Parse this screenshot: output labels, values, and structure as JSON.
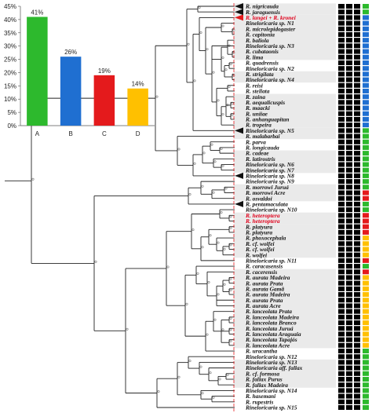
{
  "chart_data": {
    "type": "bar",
    "categories": [
      "A",
      "B",
      "C",
      "D"
    ],
    "values": [
      41,
      26,
      19,
      14
    ],
    "value_labels": [
      "41%",
      "26%",
      "19%",
      "14%"
    ],
    "colors": [
      "#2db92d",
      "#1f6fd1",
      "#e41a1c",
      "#ffc000"
    ],
    "ylim": [
      0,
      45
    ],
    "yticks": [
      "0%",
      "5%",
      "10%",
      "15%",
      "20%",
      "25%",
      "30%",
      "35%",
      "40%",
      "45%"
    ]
  },
  "tree": {
    "taxa": [
      {
        "label": "R. nigricauda",
        "red": false
      },
      {
        "label": "R. jaraguensis",
        "red": false
      },
      {
        "label": "R. langei + R. kronei",
        "red": true
      },
      {
        "label": "Rineloricaria sp. N1",
        "red": false
      },
      {
        "label": "R. microlepidogaster",
        "red": false
      },
      {
        "label": "R. capitonia",
        "red": false
      },
      {
        "label": "R. baliola",
        "red": false
      },
      {
        "label": "Rineloricaria sp. N3",
        "red": false
      },
      {
        "label": "R. cubataonis",
        "red": false
      },
      {
        "label": "R. lima",
        "red": false
      },
      {
        "label": "R. quadrensis",
        "red": false
      },
      {
        "label": "Rineloricaria sp. N2",
        "red": false
      },
      {
        "label": "R. strigilata",
        "red": false
      },
      {
        "label": "Rineloricaria sp. N4",
        "red": false
      },
      {
        "label": "R. reisi",
        "red": false
      },
      {
        "label": "R. stellata",
        "red": false
      },
      {
        "label": "R. zaina",
        "red": false
      },
      {
        "label": "R. aequalicuspis",
        "red": false
      },
      {
        "label": "R. maacki",
        "red": false
      },
      {
        "label": "R. uniiae",
        "red": false
      },
      {
        "label": "R. anhanguapitan",
        "red": false
      },
      {
        "label": "R. tropeira",
        "red": false
      },
      {
        "label": "Rineloricaria sp. N5",
        "red": false
      },
      {
        "label": "R. malabarbai",
        "red": false
      },
      {
        "label": "R. parva",
        "red": false
      },
      {
        "label": "R. longicauda",
        "red": false
      },
      {
        "label": "R. cadeae",
        "red": false
      },
      {
        "label": "R. latirostris",
        "red": false
      },
      {
        "label": "Rineloricaria sp. N6",
        "red": false
      },
      {
        "label": "Rineloricaria sp. N7",
        "red": false
      },
      {
        "label": "Rineloricaria sp. N8",
        "red": false
      },
      {
        "label": "Rineloricaria sp. N9",
        "red": false
      },
      {
        "label": "R. morrowi Juruá",
        "red": false
      },
      {
        "label": "R. morrowi Acre",
        "red": false
      },
      {
        "label": "R. osvaldoi",
        "red": false
      },
      {
        "label": "R. pentamaculata",
        "red": false
      },
      {
        "label": "Rineloricaria sp. N10",
        "red": false
      },
      {
        "label": "R. heteroptera",
        "red": true
      },
      {
        "label": "R. heteroptera",
        "red": true
      },
      {
        "label": "R. platyura",
        "red": false
      },
      {
        "label": "R. platyura",
        "red": false
      },
      {
        "label": "R. phoxocephala",
        "red": false
      },
      {
        "label": "R. cf. wolfei",
        "red": false
      },
      {
        "label": "R. cf. wolfei",
        "red": false
      },
      {
        "label": "R. wolfei",
        "red": false
      },
      {
        "label": "Rineloricaria sp. N11",
        "red": false
      },
      {
        "label": "R. caracasensis",
        "red": false
      },
      {
        "label": "R. cacerensis",
        "red": false
      },
      {
        "label": "R. aurata Madeira",
        "red": false
      },
      {
        "label": "R. aurata Prata",
        "red": false
      },
      {
        "label": "R. aurata Gamã",
        "red": false
      },
      {
        "label": "R. aurata Madeira",
        "red": false
      },
      {
        "label": "R. aurata Prata",
        "red": false
      },
      {
        "label": "R. aurata Acre",
        "red": false
      },
      {
        "label": "R. lanceolata Prata",
        "red": false
      },
      {
        "label": "R. lanceolata Madeira",
        "red": false
      },
      {
        "label": "R. lanceolata Branco",
        "red": false
      },
      {
        "label": "R. lanceolata Juruá",
        "red": false
      },
      {
        "label": "R. lanceolata Araguaia",
        "red": false
      },
      {
        "label": "R. lanceolata Tapajós",
        "red": false
      },
      {
        "label": "R. lanceolata Acre",
        "red": false
      },
      {
        "label": "R. uracantha",
        "red": false
      },
      {
        "label": "Rineloricaria sp. N12",
        "red": false
      },
      {
        "label": "Rineloricaria sp. N13",
        "red": false
      },
      {
        "label": "Rineloricaria aff. fallax",
        "red": false
      },
      {
        "label": "R. cf. formosa",
        "red": false
      },
      {
        "label": "R. fallax Purus",
        "red": false
      },
      {
        "label": "R. fallax Madeira",
        "red": false
      },
      {
        "label": "Rineloricaria sp. N14",
        "red": false
      },
      {
        "label": "R. hasemani",
        "red": false
      },
      {
        "label": "R. rupestris",
        "red": false
      },
      {
        "label": "Rineloricaria sp. N15",
        "red": false
      }
    ],
    "columns": [
      {
        "name": "col1",
        "color": "#000000",
        "states": [
          "k",
          "k",
          "k",
          "k",
          "k",
          "k",
          "k",
          "k",
          "k",
          "k",
          "k",
          "k",
          "k",
          "k",
          "k",
          "k",
          "k",
          "k",
          "k",
          "k",
          "k",
          "k",
          "k",
          "k",
          "k",
          "k",
          "k",
          "k",
          "k",
          "k",
          "k",
          "k",
          "k",
          "k",
          "k",
          "k",
          "k",
          "k",
          "k",
          "k",
          "k",
          "k",
          "k",
          "k",
          "k",
          "k",
          "k",
          "k",
          "k",
          "k",
          "k",
          "k",
          "k",
          "k",
          "k",
          "k",
          "k",
          "k",
          "k",
          "k",
          "k",
          "k",
          "k",
          "k",
          "k",
          "k",
          "k",
          "k",
          "k",
          "k",
          "k",
          "k"
        ]
      },
      {
        "name": "col2",
        "color": "#000000",
        "states": [
          "k",
          "k",
          "k",
          "k",
          "k",
          "k",
          "k",
          "k",
          "k",
          "k",
          "k",
          "k",
          "k",
          "k",
          "k",
          "k",
          "k",
          "k",
          "k",
          "k",
          "k",
          "k",
          "k",
          "k",
          "k",
          "k",
          "k",
          "k",
          "k",
          "k",
          "k",
          "k",
          "k",
          "k",
          "k",
          "k",
          "k",
          "k",
          "k",
          "k",
          "k",
          "k",
          "k",
          "k",
          "k",
          "k",
          "k",
          "k",
          "k",
          "k",
          "k",
          "k",
          "k",
          "k",
          "k",
          "k",
          "k",
          "k",
          "k",
          "k",
          "k",
          "k",
          "k",
          "k",
          "k",
          "k",
          "k",
          "k",
          "k",
          "k",
          "k",
          "k"
        ]
      },
      {
        "name": "col3",
        "states": [
          "k",
          "k",
          "k",
          "k",
          "k",
          "k",
          "k",
          "k",
          "k",
          "k",
          "k",
          "k",
          "k",
          "k",
          "k",
          "k",
          "k",
          "k",
          "k",
          "k",
          "k",
          "k",
          "k",
          "k",
          "k",
          "k",
          "k",
          "k",
          "k",
          "k",
          "k",
          "k",
          "k",
          "k",
          "k",
          "k",
          "k",
          "k",
          "k",
          "k",
          "k",
          "k",
          "k",
          "k",
          "k",
          "k",
          "k",
          "k",
          "k",
          "k",
          "k",
          "k",
          "k",
          "k",
          "k",
          "k",
          "k",
          "k",
          "k",
          "k",
          "k",
          "k",
          "k",
          "k",
          "k",
          "k",
          "k",
          "k",
          "k",
          "k",
          "k",
          "k"
        ]
      },
      {
        "name": "col4",
        "states": [
          "g",
          "g",
          "b",
          "b",
          "b",
          "b",
          "b",
          "b",
          "b",
          "b",
          "b",
          "b",
          "b",
          "b",
          "b",
          "b",
          "b",
          "b",
          "b",
          "b",
          "b",
          "b",
          "g",
          "g",
          "g",
          "g",
          "g",
          "g",
          "g",
          "g",
          "g",
          "g",
          "g",
          "r",
          "r",
          "g",
          "g",
          "r",
          "r",
          "r",
          "r",
          "y",
          "y",
          "y",
          "y",
          "r",
          "g",
          "r",
          "y",
          "y",
          "y",
          "y",
          "y",
          "y",
          "y",
          "y",
          "y",
          "y",
          "y",
          "y",
          "y",
          "g",
          "g",
          "g",
          "g",
          "g",
          "g",
          "g",
          "g",
          "g",
          "g",
          "g"
        ]
      }
    ],
    "state_colors": {
      "k": "#000000",
      "g": "#2db92d",
      "b": "#1f6fd1",
      "r": "#e41a1c",
      "y": "#ffc000"
    }
  }
}
